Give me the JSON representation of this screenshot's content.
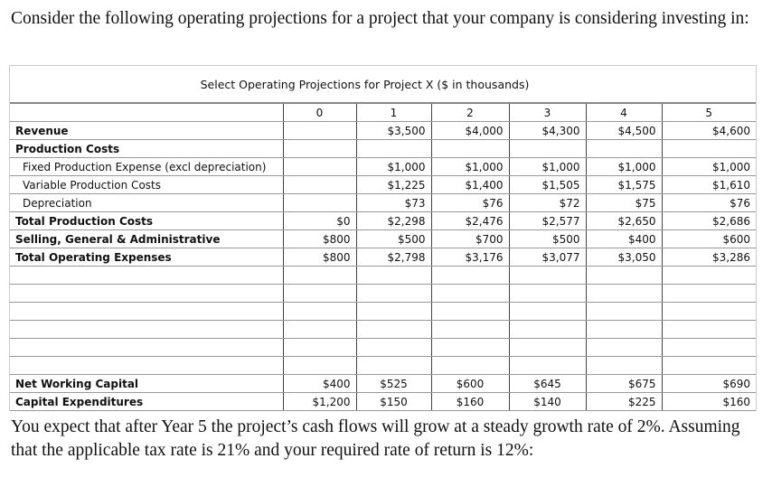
{
  "intro": "Consider the following operating projections for a project that your company is considering investing in:",
  "table": {
    "title": "Select Operating Projections for Project X ($ in thousands)",
    "years": [
      "0",
      "1",
      "2",
      "3",
      "4",
      "5"
    ],
    "rows": [
      {
        "label": "Revenue",
        "bold": true,
        "values": [
          "",
          "$3,500",
          "$4,000",
          "$4,300",
          "$4,500",
          "$4,600"
        ]
      },
      {
        "label": "Production Costs",
        "bold": true,
        "values": [
          "",
          "",
          "",
          "",
          "",
          ""
        ]
      },
      {
        "label": "Fixed Production Expense (excl depreciation)",
        "indent": true,
        "values": [
          "",
          "$1,000",
          "$1,000",
          "$1,000",
          "$1,000",
          "$1,000"
        ]
      },
      {
        "label": "Variable Production Costs",
        "indent": true,
        "values": [
          "",
          "$1,225",
          "$1,400",
          "$1,505",
          "$1,575",
          "$1,610"
        ]
      },
      {
        "label": "Depreciation",
        "indent": true,
        "values": [
          "",
          "$73",
          "$76",
          "$72",
          "$75",
          "$76"
        ]
      },
      {
        "label": "Total Production Costs",
        "bold": true,
        "values": [
          "$0",
          "$2,298",
          "$2,476",
          "$2,577",
          "$2,650",
          "$2,686"
        ]
      },
      {
        "label": "Selling, General & Administrative",
        "bold": true,
        "values": [
          "$800",
          "$500",
          "$700",
          "$500",
          "$400",
          "$600"
        ]
      },
      {
        "label": "Total Operating Expenses",
        "bold": true,
        "values": [
          "$800",
          "$2,798",
          "$3,176",
          "$3,077",
          "$3,050",
          "$3,286"
        ]
      }
    ],
    "bottom_rows": [
      {
        "label": "Net Working Capital",
        "values": [
          "$400",
          "$525",
          "$600",
          "$645",
          "$675",
          "$690"
        ]
      },
      {
        "label": "Capital Expenditures",
        "values": [
          "$1,200",
          "$150",
          "$160",
          "$140",
          "$225",
          "$160"
        ]
      }
    ]
  },
  "outro": "You expect that after Year 5 the project’s cash flows will grow at a steady growth rate of 2%. Assuming that the applicable tax rate is 21% and your required rate of return is 12%:"
}
